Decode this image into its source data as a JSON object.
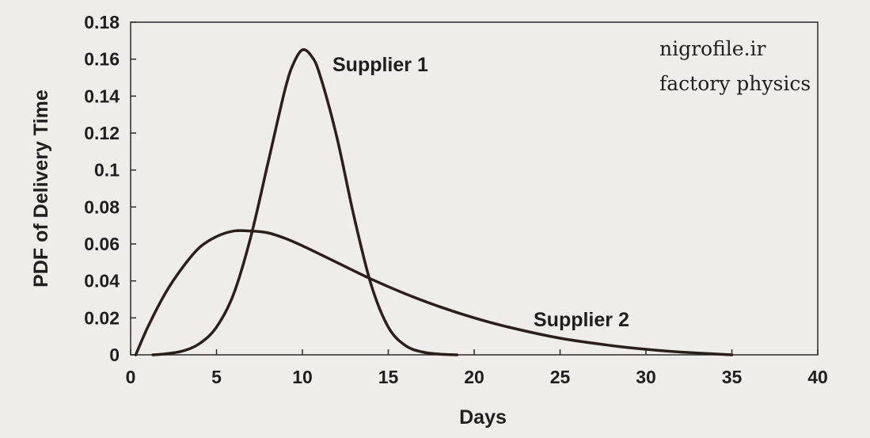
{
  "chart_data": {
    "type": "line",
    "xlabel": "Days",
    "ylabel": "PDF of Delivery Time",
    "xlim": [
      0,
      40
    ],
    "ylim": [
      0,
      0.18
    ],
    "xticks": [
      0,
      5,
      10,
      15,
      20,
      25,
      30,
      35,
      40
    ],
    "yticks": [
      0,
      0.02,
      0.04,
      0.06,
      0.08,
      0.1,
      0.12,
      0.14,
      0.16,
      0.18
    ],
    "xtick_labels": [
      "0",
      "5",
      "10",
      "15",
      "20",
      "25",
      "30",
      "35",
      "40"
    ],
    "ytick_labels": [
      "0",
      "0.02",
      "0.04",
      "0.06",
      "0.08",
      "0.1",
      "0.12",
      "0.14",
      "0.16",
      "0.18"
    ],
    "grid": false,
    "series": [
      {
        "name": "Supplier 1",
        "color": "#2a1f1a",
        "x": [
          1.3,
          2,
          3,
          4,
          5,
          6,
          7,
          8,
          9,
          9.5,
          10,
          10.5,
          11,
          12,
          13,
          14,
          15,
          16,
          17,
          18,
          19
        ],
        "y": [
          0.0,
          0.0005,
          0.002,
          0.006,
          0.015,
          0.033,
          0.064,
          0.104,
          0.144,
          0.158,
          0.165,
          0.162,
          0.152,
          0.118,
          0.075,
          0.038,
          0.015,
          0.005,
          0.0015,
          0.0004,
          0.0
        ]
      },
      {
        "name": "Supplier 2",
        "color": "#2a1f1a",
        "x": [
          0.3,
          1,
          2,
          3,
          4,
          5,
          6,
          7,
          8,
          9,
          10,
          12,
          14,
          16,
          18,
          20,
          22,
          25,
          28,
          30,
          32,
          35
        ],
        "y": [
          0.0,
          0.015,
          0.033,
          0.047,
          0.058,
          0.064,
          0.067,
          0.067,
          0.066,
          0.063,
          0.059,
          0.05,
          0.041,
          0.033,
          0.026,
          0.02,
          0.015,
          0.009,
          0.005,
          0.003,
          0.0015,
          0.0
        ]
      }
    ]
  },
  "watermark": {
    "line1": "nigrofile.ir",
    "line2": "factory physics"
  }
}
